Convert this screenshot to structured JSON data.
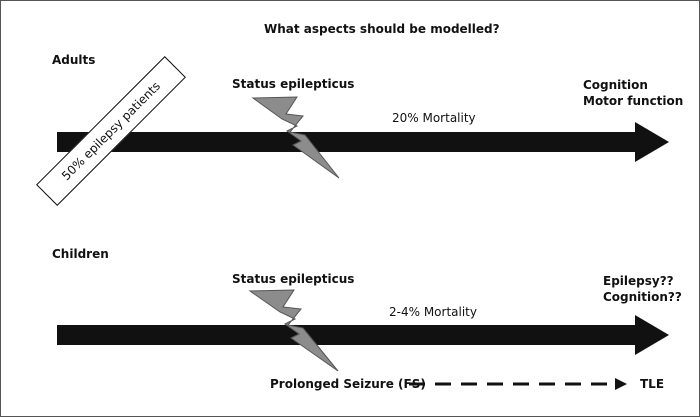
{
  "title": "What aspects should be modelled?",
  "adults": {
    "label": "Adults",
    "note_box": "50% epilepsy patients",
    "event": "Status epilepticus",
    "mortality": "20% Mortality",
    "outcomes": [
      "Cognition",
      "Motor function"
    ]
  },
  "children": {
    "label": "Children",
    "event": "Status epilepticus",
    "mortality": "2-4% Mortality",
    "outcomes": [
      "Epilepsy??",
      "Cognition??"
    ],
    "prolonged": "Prolonged Seizure (FS)",
    "tle": "TLE"
  },
  "colors": {
    "arrow": "#111111",
    "bolt_fill": "#8c8c8c",
    "bolt_stroke": "#555555"
  }
}
